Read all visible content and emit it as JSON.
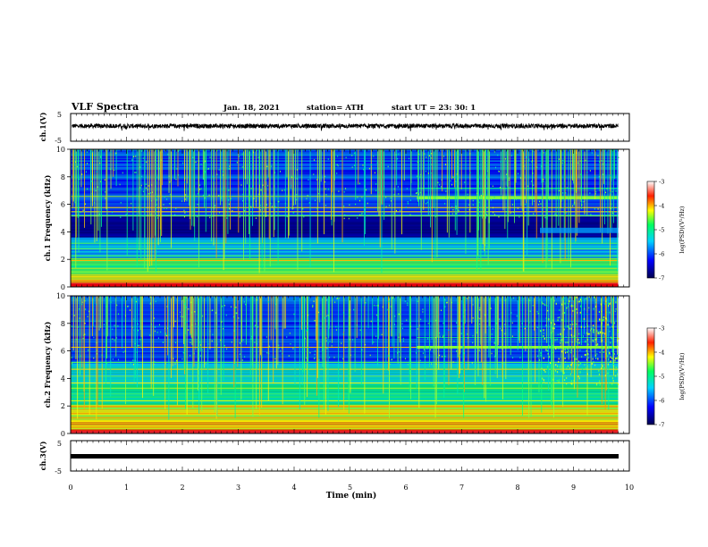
{
  "header": {
    "title": "VLF Spectra",
    "date": "Jan. 18, 2021",
    "station": "station= ATH",
    "start_ut": "start  UT  =  23: 30: 1"
  },
  "chart_data": [
    {
      "type": "line",
      "ylabel": "ch.1(V)",
      "ylim": [
        -5,
        5
      ],
      "yticks": [
        "5",
        "-5"
      ],
      "x_range": [
        0,
        9.8
      ],
      "description_of_series": "noisy waveform centered slightly above 0 V",
      "series": [
        {
          "name": "",
          "mean": 0.5,
          "amplitude": 0.8
        }
      ],
      "grid": false
    },
    {
      "type": "heatmap",
      "ylabel": "ch.1 Frequency  (kHz)",
      "ylim": [
        0,
        10
      ],
      "yticks": [
        "0",
        "2",
        "4",
        "6",
        "8",
        "10"
      ],
      "xlim": [
        0,
        10
      ],
      "data_extent_min": 9.8,
      "colorbar": {
        "label": "log(PSD)(V²/Hz)",
        "range": [
          -7,
          -3
        ],
        "ticks": [
          "-3",
          "-4",
          "-5",
          "-6",
          "-7"
        ]
      },
      "features": {
        "emission_band_khz": 6.5,
        "emission_start_min": 6.2,
        "dark_band_khz": [
          3.7,
          5.0
        ]
      }
    },
    {
      "type": "heatmap",
      "ylabel": "ch.2 Frequency  (kHz)",
      "ylim": [
        0,
        10
      ],
      "yticks": [
        "0",
        "2",
        "4",
        "6",
        "8",
        "10"
      ],
      "xlim": [
        0,
        10
      ],
      "data_extent_min": 9.8,
      "colorbar": {
        "label": "log(PSD)(V²/Hz)",
        "range": [
          -7,
          -3
        ],
        "ticks": [
          "-3",
          "-4",
          "-5",
          "-6",
          "-7"
        ]
      },
      "features": {
        "emission_band_khz": 6.3,
        "emission_start_min": 6.2,
        "bright_patch_start_min": 8.4
      }
    },
    {
      "type": "line",
      "ylabel": "ch.3(V)",
      "ylim": [
        -5,
        5
      ],
      "yticks": [
        "5",
        "-5"
      ],
      "xlabel": "Time  (min)",
      "xticks": [
        "0",
        "1",
        "2",
        "3",
        "4",
        "5",
        "6",
        "7",
        "8",
        "9",
        "10"
      ],
      "series": [
        {
          "name": "",
          "mean": 0.0,
          "amplitude": 0.0
        }
      ]
    }
  ],
  "colors": {
    "scale": [
      "#000050",
      "#0000ff",
      "#00d2ff",
      "#00ff80",
      "#ffff00",
      "#ff4000",
      "#ff0000",
      "#ffffff"
    ]
  }
}
